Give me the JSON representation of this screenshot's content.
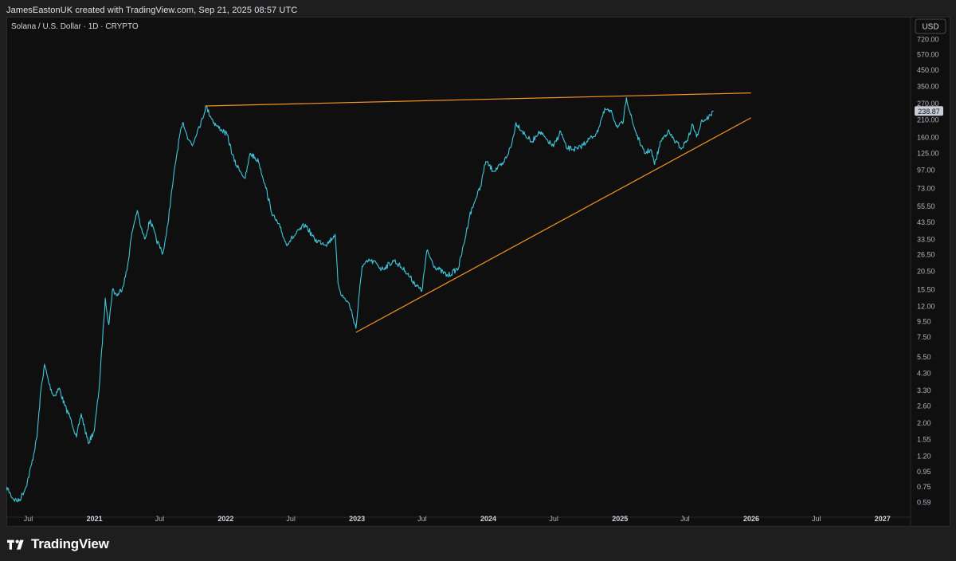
{
  "header": {
    "attribution": "JamesEastonUK created with TradingView.com, Sep 21, 2025 08:57 UTC"
  },
  "footer": {
    "brand": "TradingView",
    "logo_icon": "tradingview-logo-icon"
  },
  "chart_data": {
    "type": "line",
    "title": "Solana / U.S. Dollar · 1D · CRYPTO",
    "currency_label": "USD",
    "y_scale": "log",
    "y_ticks": [
      "720.00",
      "570.00",
      "450.00",
      "350.00",
      "270.00",
      "210.00",
      "160.00",
      "125.00",
      "97.00",
      "73.00",
      "55.50",
      "43.50",
      "33.50",
      "26.50",
      "20.50",
      "15.50",
      "12.00",
      "9.50",
      "7.50",
      "5.50",
      "4.30",
      "3.30",
      "2.60",
      "2.00",
      "1.55",
      "1.20",
      "0.95",
      "0.75",
      "0.59"
    ],
    "x_ticks": [
      "Jul",
      "2021",
      "Jul",
      "2022",
      "Jul",
      "2023",
      "Jul",
      "2024",
      "Jul",
      "2025",
      "Jul",
      "2026",
      "Jul",
      "2027"
    ],
    "x_tick_dates": [
      "2020-07-01",
      "2021-01-01",
      "2021-07-01",
      "2022-01-01",
      "2022-07-01",
      "2023-01-01",
      "2023-07-01",
      "2024-01-01",
      "2024-07-01",
      "2025-01-01",
      "2025-07-01",
      "2026-01-01",
      "2026-07-01",
      "2027-01-01"
    ],
    "ylim": [
      0.53,
      920
    ],
    "xlim": [
      "2020-05-01",
      "2027-03-20"
    ],
    "last_price_label": "238.87",
    "grid": false,
    "colors": {
      "price_line": "#3fc6d9",
      "trendline": "#f7931e",
      "last_price_bg": "#c9cdd6",
      "last_price_text": "#131722"
    },
    "series": [
      {
        "x": [
          "2020-05-01",
          "2020-05-20",
          "2020-06-05",
          "2020-06-25",
          "2020-07-10",
          "2020-07-25",
          "2020-08-05",
          "2020-08-15",
          "2020-08-28",
          "2020-09-10",
          "2020-09-25",
          "2020-10-10",
          "2020-10-28",
          "2020-11-12",
          "2020-11-25",
          "2020-12-15",
          "2021-01-01",
          "2021-01-15",
          "2021-01-31",
          "2021-02-10",
          "2021-02-20",
          "2021-03-05",
          "2021-03-20",
          "2021-04-01",
          "2021-04-15",
          "2021-04-30",
          "2021-05-10",
          "2021-05-20",
          "2021-06-05",
          "2021-06-22",
          "2021-07-10",
          "2021-07-20",
          "2021-08-05",
          "2021-08-15",
          "2021-08-25",
          "2021-09-05",
          "2021-09-15",
          "2021-09-30",
          "2021-10-15",
          "2021-10-30",
          "2021-11-06",
          "2021-11-20",
          "2021-12-05",
          "2021-12-20",
          "2022-01-05",
          "2022-01-25",
          "2022-02-10",
          "2022-02-24",
          "2022-03-10",
          "2022-04-02",
          "2022-04-20",
          "2022-05-05",
          "2022-05-12",
          "2022-06-01",
          "2022-06-18",
          "2022-07-10",
          "2022-08-10",
          "2022-09-05",
          "2022-10-10",
          "2022-11-01",
          "2022-11-09",
          "2022-11-20",
          "2022-12-10",
          "2022-12-29",
          "2023-01-15",
          "2023-02-05",
          "2023-02-25",
          "2023-03-10",
          "2023-04-15",
          "2023-05-15",
          "2023-06-10",
          "2023-06-30",
          "2023-07-14",
          "2023-08-05",
          "2023-09-10",
          "2023-10-10",
          "2023-10-25",
          "2023-11-10",
          "2023-11-25",
          "2023-12-10",
          "2023-12-25",
          "2024-01-15",
          "2024-02-10",
          "2024-03-05",
          "2024-03-18",
          "2024-04-13",
          "2024-05-01",
          "2024-05-20",
          "2024-06-10",
          "2024-06-30",
          "2024-07-20",
          "2024-08-05",
          "2024-09-06",
          "2024-10-01",
          "2024-10-28",
          "2024-11-10",
          "2024-11-22",
          "2024-12-10",
          "2024-12-25",
          "2025-01-10",
          "2025-01-19",
          "2025-02-05",
          "2025-02-28",
          "2025-03-10",
          "2025-03-28",
          "2025-04-07",
          "2025-04-25",
          "2025-05-14",
          "2025-06-05",
          "2025-06-22",
          "2025-07-10",
          "2025-07-22",
          "2025-08-02",
          "2025-08-15",
          "2025-08-28",
          "2025-09-10",
          "2025-09-18"
        ],
        "values": [
          0.75,
          0.62,
          0.6,
          0.75,
          1.05,
          1.6,
          3.3,
          4.9,
          3.6,
          3.0,
          3.4,
          2.6,
          2.1,
          1.6,
          2.3,
          1.45,
          1.8,
          3.6,
          13.5,
          9.0,
          15.5,
          14.0,
          16.0,
          20.5,
          37.0,
          52.0,
          40.0,
          33.5,
          45.0,
          33.0,
          27.0,
          36.0,
          73.0,
          110.0,
          160.0,
          200.0,
          165.0,
          140.0,
          180.0,
          215.0,
          258.0,
          220.0,
          190.0,
          180.0,
          165.0,
          110.0,
          95.0,
          85.0,
          125.0,
          110.0,
          78.0,
          55.0,
          48.0,
          40.0,
          31.0,
          35.0,
          42.0,
          33.0,
          31.0,
          36.0,
          17.0,
          14.0,
          12.5,
          8.5,
          22.0,
          24.0,
          23.0,
          21.0,
          24.0,
          20.5,
          17.0,
          15.0,
          28.0,
          22.0,
          19.0,
          21.5,
          31.0,
          48.0,
          60.0,
          75.0,
          110.0,
          95.0,
          105.0,
          140.0,
          200.0,
          165.0,
          148.0,
          175.0,
          155.0,
          138.0,
          175.0,
          135.0,
          133.0,
          150.0,
          170.0,
          210.0,
          245.0,
          230.0,
          185.0,
          200.0,
          293.0,
          200.0,
          140.0,
          125.0,
          132.0,
          105.0,
          150.0,
          175.0,
          148.0,
          135.0,
          160.0,
          195.0,
          160.0,
          205.0,
          210.0,
          225.0,
          238.87
        ]
      }
    ],
    "trendlines": [
      {
        "x": [
          "2021-11-06",
          "2025-12-31"
        ],
        "y": [
          258.0,
          315.0
        ]
      },
      {
        "x": [
          "2022-12-29",
          "2025-12-31"
        ],
        "y": [
          8.0,
          215.0
        ]
      }
    ]
  }
}
